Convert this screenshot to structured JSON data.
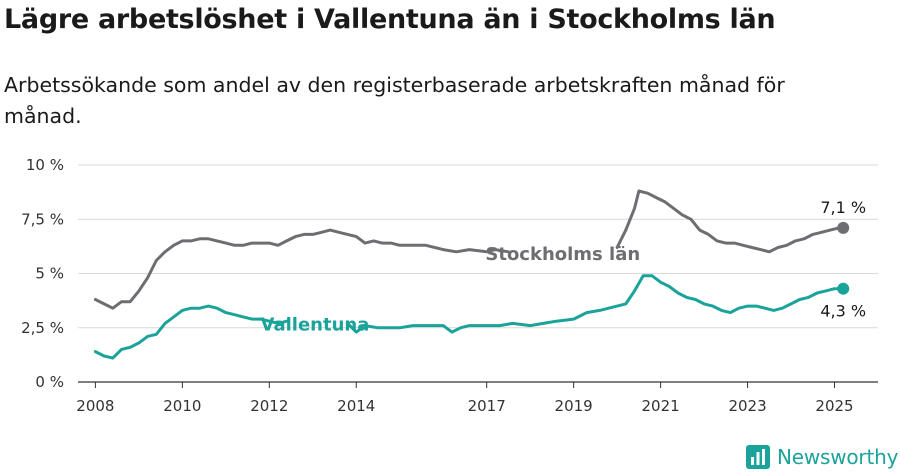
{
  "header": {
    "title": "Lägre arbetslöshet i Vallentuna än i Stockholms län",
    "subtitle": "Arbetssökande som andel av den registerbaserade arbetskraften månad för månad."
  },
  "logo": {
    "text": "Newsworthy",
    "icon": "newsworthy-logo-icon",
    "color": "#1aa39a"
  },
  "chart_data": {
    "type": "line",
    "title": "Lägre arbetslöshet i Vallentuna än i Stockholms län",
    "subtitle": "Arbetssökande som andel av den registerbaserade arbetskraften månad för månad.",
    "xlabel": "",
    "ylabel": "",
    "xlim": [
      2007.6,
      2026.0
    ],
    "ylim": [
      0,
      10
    ],
    "grid": true,
    "legend": "inline-labels",
    "x_ticks": [
      2008,
      2010,
      2012,
      2014,
      2017,
      2019,
      2021,
      2023,
      2025
    ],
    "x_tick_labels": [
      "2008",
      "2010",
      "2012",
      "2014",
      "2017",
      "2019",
      "2021",
      "2023",
      "2025"
    ],
    "y_ticks": [
      0,
      2.5,
      5,
      7.5,
      10
    ],
    "y_tick_labels": [
      "0 %",
      "2,5 %",
      "5 %",
      "7,5 %",
      "10 %"
    ],
    "series": [
      {
        "name": "Stockholms län",
        "color": "#6e6e72",
        "end_label": "7,1 %",
        "x": [
          2008.0,
          2008.2,
          2008.4,
          2008.6,
          2008.8,
          2009.0,
          2009.2,
          2009.4,
          2009.6,
          2009.8,
          2010.0,
          2010.2,
          2010.4,
          2010.6,
          2010.8,
          2011.0,
          2011.2,
          2011.4,
          2011.6,
          2011.8,
          2012.0,
          2012.2,
          2012.4,
          2012.6,
          2012.8,
          2013.0,
          2013.2,
          2013.4,
          2013.6,
          2013.8,
          2014.0,
          2014.2,
          2014.4,
          2014.6,
          2014.8,
          2015.0,
          2015.3,
          2015.6,
          2016.0,
          2016.3,
          2016.6,
          2017.0,
          2017.2,
          2017.5,
          2020.0,
          2020.2,
          2020.4,
          2020.5,
          2020.7,
          2020.9,
          2021.1,
          2021.3,
          2021.5,
          2021.7,
          2021.9,
          2022.1,
          2022.3,
          2022.5,
          2022.7,
          2022.9,
          2023.1,
          2023.3,
          2023.5,
          2023.7,
          2023.9,
          2024.1,
          2024.3,
          2024.5,
          2024.7,
          2024.9,
          2025.1,
          2025.2
        ],
        "values": [
          3.8,
          3.6,
          3.4,
          3.7,
          3.7,
          4.2,
          4.8,
          5.6,
          6.0,
          6.3,
          6.5,
          6.5,
          6.6,
          6.6,
          6.5,
          6.4,
          6.3,
          6.3,
          6.4,
          6.4,
          6.4,
          6.3,
          6.5,
          6.7,
          6.8,
          6.8,
          6.9,
          7.0,
          6.9,
          6.8,
          6.7,
          6.4,
          6.5,
          6.4,
          6.4,
          6.3,
          6.3,
          6.3,
          6.1,
          6.0,
          6.1,
          6.0,
          6.1,
          6.0,
          6.2,
          7.0,
          8.0,
          8.8,
          8.7,
          8.5,
          8.3,
          8.0,
          7.7,
          7.5,
          7.0,
          6.8,
          6.5,
          6.4,
          6.4,
          6.3,
          6.2,
          6.1,
          6.0,
          6.2,
          6.3,
          6.5,
          6.6,
          6.8,
          6.9,
          7.0,
          7.1,
          7.1
        ]
      },
      {
        "name": "Vallentuna",
        "color": "#1aa39a",
        "end_label": "4,3 %",
        "x": [
          2008.0,
          2008.2,
          2008.4,
          2008.6,
          2008.8,
          2009.0,
          2009.2,
          2009.4,
          2009.6,
          2009.8,
          2010.0,
          2010.2,
          2010.4,
          2010.6,
          2010.8,
          2011.0,
          2011.2,
          2011.4,
          2011.6,
          2011.8,
          2012.0,
          2012.2,
          2012.4,
          2013.8,
          2014.0,
          2014.2,
          2014.5,
          2014.8,
          2015.0,
          2015.3,
          2015.6,
          2016.0,
          2016.2,
          2016.4,
          2016.6,
          2017.0,
          2017.3,
          2017.6,
          2018.0,
          2018.3,
          2018.6,
          2019.0,
          2019.3,
          2019.6,
          2020.0,
          2020.2,
          2020.4,
          2020.6,
          2020.8,
          2021.0,
          2021.2,
          2021.4,
          2021.6,
          2021.8,
          2022.0,
          2022.2,
          2022.4,
          2022.6,
          2022.8,
          2023.0,
          2023.2,
          2023.4,
          2023.6,
          2023.8,
          2024.0,
          2024.2,
          2024.4,
          2024.6,
          2024.8,
          2025.0,
          2025.2
        ],
        "values": [
          1.4,
          1.2,
          1.1,
          1.5,
          1.6,
          1.8,
          2.1,
          2.2,
          2.7,
          3.0,
          3.3,
          3.4,
          3.4,
          3.5,
          3.4,
          3.2,
          3.1,
          3.0,
          2.9,
          2.9,
          2.8,
          2.7,
          2.8,
          2.7,
          2.3,
          2.6,
          2.5,
          2.5,
          2.5,
          2.6,
          2.6,
          2.6,
          2.3,
          2.5,
          2.6,
          2.6,
          2.6,
          2.7,
          2.6,
          2.7,
          2.8,
          2.9,
          3.2,
          3.3,
          3.5,
          3.6,
          4.2,
          4.9,
          4.9,
          4.6,
          4.4,
          4.1,
          3.9,
          3.8,
          3.6,
          3.5,
          3.3,
          3.2,
          3.4,
          3.5,
          3.5,
          3.4,
          3.3,
          3.4,
          3.6,
          3.8,
          3.9,
          4.1,
          4.2,
          4.3,
          4.3
        ]
      }
    ]
  }
}
